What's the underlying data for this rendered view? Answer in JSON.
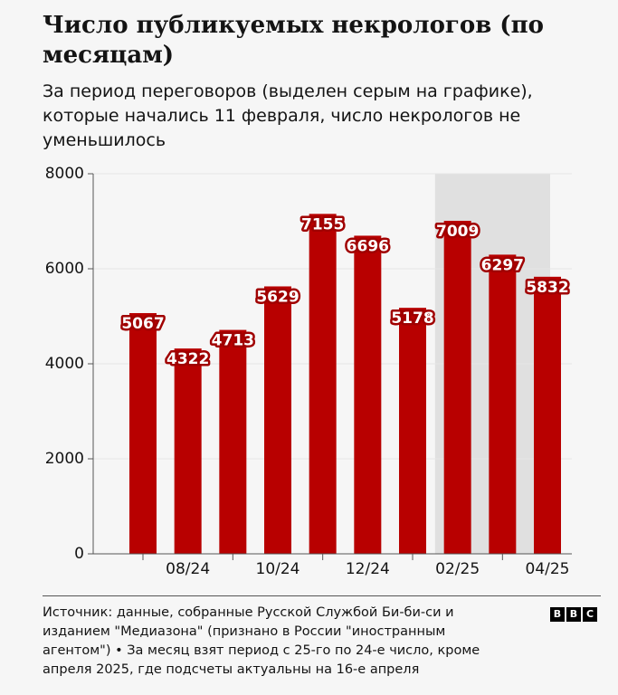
{
  "chart_data": {
    "type": "bar",
    "title": "Число публикуемых некрологов (по месяцам)",
    "subtitle": "За период переговоров (выделен серым на графике), которые начались 11 февраля, число некрологов не уменьшилось",
    "categories": [
      null,
      "08/24",
      null,
      "10/24",
      null,
      "12/24",
      null,
      "02/25",
      null,
      "04/25"
    ],
    "values": [
      5067,
      4322,
      4713,
      5629,
      7155,
      6696,
      5178,
      7009,
      6297,
      5832
    ],
    "color": "#b80000",
    "highlight_start": 7,
    "ylim": [
      0,
      8000
    ],
    "yticks": [
      0,
      2000,
      4000,
      6000,
      8000
    ],
    "grid": true
  },
  "footer": {
    "source": "Источник: данные, собранные Русской Службой Би-би-си и изданием \"Медиазона\" (признано в России \"иностранным агентом\") • За месяц взят период с 25-го по 24-е число, кроме апреля 2025, где подсчеты актуальны на 16-е апреля",
    "logo": [
      "B",
      "B",
      "C"
    ]
  }
}
